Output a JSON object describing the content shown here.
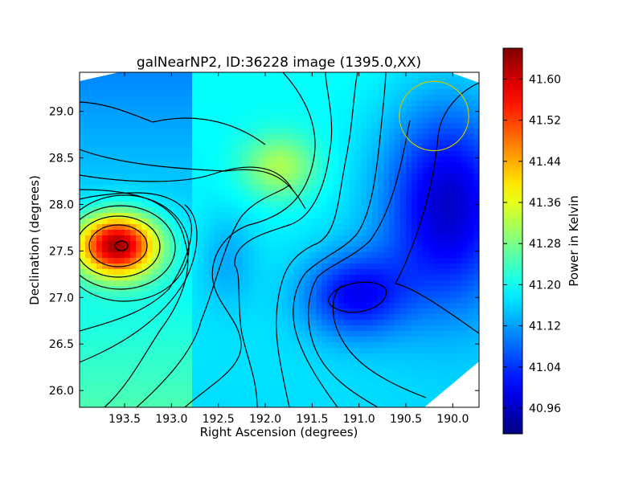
{
  "chart_data": {
    "type": "heatmap",
    "title": "galNearNP2, ID:36228 image (1395.0,XX)",
    "xlabel": "Right Ascension (degrees)",
    "ylabel": "Declination (degrees)",
    "xlim": [
      193.98,
      189.72
    ],
    "ylim": [
      25.82,
      29.42
    ],
    "x_ticks": [
      {
        "value": 193.5,
        "label": "193.5"
      },
      {
        "value": 193.0,
        "label": "193.0"
      },
      {
        "value": 192.5,
        "label": "192.5"
      },
      {
        "value": 192.0,
        "label": "192.0"
      },
      {
        "value": 191.5,
        "label": "191.5"
      },
      {
        "value": 191.0,
        "label": "191.0"
      },
      {
        "value": 190.5,
        "label": "190.5"
      },
      {
        "value": 190.0,
        "label": "190.0"
      }
    ],
    "y_ticks": [
      {
        "value": 26.0,
        "label": "26.0"
      },
      {
        "value": 26.5,
        "label": "26.5"
      },
      {
        "value": 27.0,
        "label": "27.0"
      },
      {
        "value": 27.5,
        "label": "27.5"
      },
      {
        "value": 28.0,
        "label": "28.0"
      },
      {
        "value": 28.5,
        "label": "28.5"
      },
      {
        "value": 29.0,
        "label": "29.0"
      }
    ],
    "colorbar": {
      "label": "Power in Kelvin",
      "range": [
        40.91,
        41.66
      ],
      "colormap": "jet",
      "ticks": [
        {
          "value": 40.96,
          "label": "40.96"
        },
        {
          "value": 41.04,
          "label": "41.04"
        },
        {
          "value": 41.12,
          "label": "41.12"
        },
        {
          "value": 41.2,
          "label": "41.20"
        },
        {
          "value": 41.28,
          "label": "41.28"
        },
        {
          "value": 41.36,
          "label": "41.36"
        },
        {
          "value": 41.44,
          "label": "41.44"
        },
        {
          "value": 41.52,
          "label": "41.52"
        },
        {
          "value": 41.6,
          "label": "41.60"
        }
      ]
    },
    "features": [
      {
        "kind": "peak",
        "ra": 193.58,
        "dec": 27.56,
        "value": 41.64
      },
      {
        "kind": "local-max",
        "ra": 191.85,
        "dec": 28.4,
        "value": 41.34
      },
      {
        "kind": "local-min",
        "ra": 191.05,
        "dec": 27.03,
        "value": 40.95
      },
      {
        "kind": "local-min",
        "ra": 190.1,
        "dec": 28.0,
        "value": 40.92
      }
    ],
    "circle": {
      "ra": 190.2,
      "dec": 28.95,
      "radius_deg": 0.37,
      "color": "#c8c800"
    },
    "grid": false,
    "contours": true
  }
}
